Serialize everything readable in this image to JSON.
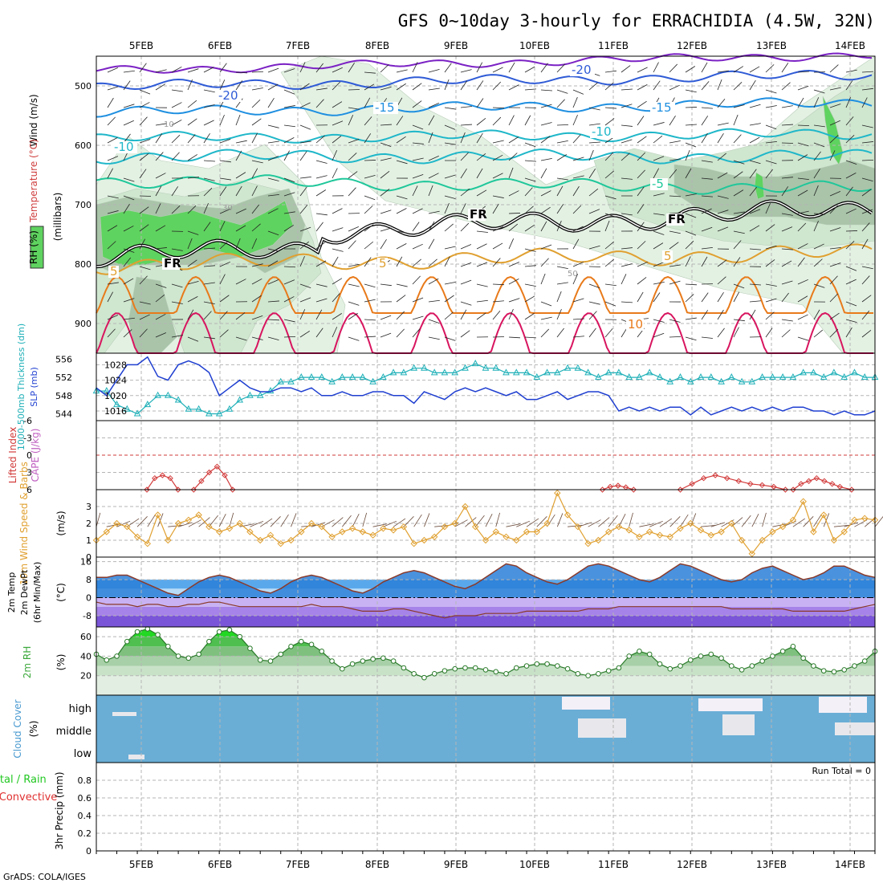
{
  "title": "GFS 0~10day 3-hourly for ERRACHIDIA (4.5W, 32N)",
  "footer": "GrADS: COLA/IGES",
  "run_total": "Run Total = 0",
  "colors": {
    "rh_light": "#e3f1e3",
    "rh_mid": "#cfe6cf",
    "rh_dark": "#a9c4a9",
    "rh_sat": "#5fd35f",
    "temp_cold": [
      "#7b22c4",
      "#2f5bd6",
      "#1f8fe0",
      "#1fb7c9",
      "#1fc79a"
    ],
    "temp_warm": [
      "#e0a030",
      "#e87a1a",
      "#d8155f"
    ],
    "slp": "#1f3fd0",
    "thickness": "#1fb0b8",
    "lifted": "#d23a3a",
    "wind10": "#e0a030",
    "temp_fill": "#2a7fd8",
    "dew_fill": "#9a6ae0",
    "rh2m": "#3ba83b",
    "cloud": "#6aaed6",
    "cloud_gap": "#e8e8ec"
  },
  "chart_data": [
    {
      "type": "contour",
      "name": "Upper-air cross section",
      "dates": [
        "5FEB",
        "6FEB",
        "7FEB",
        "8FEB",
        "9FEB",
        "10FEB",
        "11FEB",
        "12FEB",
        "13FEB",
        "14FEB"
      ],
      "ylabel": "(millibars)",
      "left_labels": {
        "wind": "Wind (m/s)",
        "temp": "Temperature (°C)",
        "rh": "RH (%)"
      },
      "ylim": [
        950,
        450
      ],
      "yticks": [
        500,
        600,
        700,
        800,
        900
      ],
      "contour_labels": [
        {
          "text": "-20",
          "color": "#2f5bd6"
        },
        {
          "text": "-20",
          "color": "#2f5bd6"
        },
        {
          "text": "-15",
          "color": "#1f8fe0"
        },
        {
          "text": "-15",
          "color": "#1f8fe0"
        },
        {
          "text": "-10",
          "color": "#1fb7c9"
        },
        {
          "text": "-10",
          "color": "#1fb7c9"
        },
        {
          "text": "-5",
          "color": "#1fc79a"
        },
        {
          "text": "5",
          "color": "#e0a030"
        },
        {
          "text": "5",
          "color": "#e0a030"
        },
        {
          "text": "5",
          "color": "#e0a030"
        },
        {
          "text": "10",
          "color": "#e87a1a"
        },
        {
          "text": "FR",
          "color": "#000000"
        },
        {
          "text": "FR",
          "color": "#000000"
        },
        {
          "text": "FR",
          "color": "#000000"
        },
        {
          "text": "10",
          "color": "#999999"
        },
        {
          "text": "30",
          "color": "#999999"
        },
        {
          "text": "50",
          "color": "#999999"
        }
      ]
    },
    {
      "type": "line",
      "name": "SLP and thickness",
      "ylabel_left": "1000-500mb Thickness (dm)",
      "ylabel_right": "SLP (mb)",
      "yticks_left": [
        544,
        548,
        552,
        556
      ],
      "yticks_right": [
        1016,
        1020,
        1024,
        1028
      ],
      "series": [
        {
          "name": "SLP",
          "values": [
            1022,
            1020,
            1024,
            1028,
            1028,
            1030,
            1025,
            1024,
            1028,
            1029,
            1028,
            1026,
            1020,
            1022,
            1024,
            1022,
            1021,
            1021,
            1022,
            1022,
            1021,
            1022,
            1020,
            1020,
            1021,
            1020,
            1020,
            1021,
            1021,
            1020,
            1020,
            1018,
            1021,
            1020,
            1019,
            1021,
            1022,
            1021,
            1022,
            1021,
            1020,
            1021,
            1019,
            1019,
            1020,
            1021,
            1019,
            1020,
            1021,
            1021,
            1020,
            1016,
            1017,
            1016,
            1017,
            1016,
            1017,
            1017,
            1015,
            1017,
            1015,
            1016,
            1017,
            1016,
            1017,
            1016,
            1017,
            1016,
            1017,
            1017,
            1016,
            1016,
            1015,
            1016,
            1015,
            1015,
            1016
          ]
        },
        {
          "name": "Thickness",
          "values": [
            549,
            549,
            546,
            545,
            544,
            546,
            548,
            548,
            547,
            545,
            545,
            544,
            544,
            545,
            547,
            548,
            548,
            549,
            551,
            551,
            552,
            552,
            552,
            551,
            552,
            552,
            552,
            551,
            552,
            553,
            553,
            554,
            554,
            553,
            553,
            553,
            554,
            555,
            554,
            554,
            553,
            553,
            553,
            552,
            553,
            553,
            554,
            554,
            553,
            552,
            553,
            553,
            552,
            552,
            553,
            552,
            551,
            552,
            551,
            552,
            552,
            551,
            552,
            551,
            551,
            552,
            552,
            552,
            552,
            553,
            553,
            552,
            553,
            552,
            553,
            552,
            552
          ]
        }
      ]
    },
    {
      "type": "line",
      "name": "Lifted index and CAPE",
      "ylabel_left": "Lifted Index",
      "ylabel_right": "CAPE (J/kg)",
      "yticks": [
        -6,
        -3,
        0,
        3,
        6
      ],
      "ylim": [
        -6,
        6
      ],
      "series": [
        {
          "name": "Lifted Index",
          "segments": [
            [
              [
                0.65,
                6
              ],
              [
                0.75,
                4
              ],
              [
                0.85,
                3.5
              ],
              [
                0.95,
                4
              ],
              [
                1.05,
                6
              ]
            ],
            [
              [
                1.25,
                6
              ],
              [
                1.35,
                4.5
              ],
              [
                1.45,
                3
              ],
              [
                1.55,
                2
              ],
              [
                1.65,
                3.5
              ],
              [
                1.75,
                6
              ]
            ],
            [
              [
                6.5,
                6
              ],
              [
                6.6,
                5.5
              ],
              [
                6.7,
                5.3
              ],
              [
                6.8,
                5.6
              ],
              [
                6.9,
                6
              ]
            ],
            [
              [
                7.5,
                6
              ],
              [
                7.65,
                5
              ],
              [
                7.8,
                4
              ],
              [
                7.95,
                3.5
              ],
              [
                8.1,
                4
              ],
              [
                8.25,
                4.5
              ],
              [
                8.4,
                5
              ],
              [
                8.55,
                5.2
              ],
              [
                8.7,
                5.5
              ],
              [
                8.85,
                6
              ]
            ],
            [
              [
                8.95,
                6
              ],
              [
                9.05,
                5
              ],
              [
                9.15,
                4.5
              ],
              [
                9.25,
                4
              ],
              [
                9.35,
                4.5
              ],
              [
                9.45,
                5
              ],
              [
                9.55,
                5.5
              ],
              [
                9.7,
                6
              ]
            ]
          ]
        }
      ]
    },
    {
      "type": "line",
      "name": "10m wind",
      "ylabel_left": "10m Wind Speed & Barbs",
      "ylabel_right": "(m/s)",
      "yticks": [
        0,
        1,
        2,
        3
      ],
      "ylim": [
        0,
        4
      ],
      "series": [
        {
          "name": "Wind speed",
          "values": [
            1.0,
            1.5,
            2.0,
            1.8,
            1.2,
            0.8,
            2.5,
            1.0,
            2.0,
            2.2,
            2.5,
            1.8,
            1.5,
            1.7,
            2.0,
            1.5,
            1.0,
            1.3,
            0.8,
            1.0,
            1.5,
            2.0,
            1.8,
            1.2,
            1.5,
            1.7,
            1.5,
            1.3,
            1.7,
            1.6,
            1.8,
            0.8,
            1.0,
            1.2,
            1.8,
            2.0,
            3.0,
            1.8,
            1.0,
            1.5,
            1.2,
            1.0,
            1.5,
            1.5,
            2.0,
            3.8,
            2.5,
            1.8,
            0.8,
            1.0,
            1.5,
            1.8,
            1.6,
            1.2,
            1.5,
            1.3,
            1.2,
            1.7,
            2.0,
            1.6,
            1.3,
            1.5,
            2.0,
            1.0,
            0.2,
            1.0,
            1.5,
            1.8,
            2.2,
            3.3,
            1.5,
            2.5,
            1.0,
            1.5,
            2.2,
            2.3,
            2.2
          ]
        }
      ]
    },
    {
      "type": "area",
      "name": "2m temperature and dewpoint",
      "ylabel_left": "2m Temp 2m DewPt (6hr Min/Max)",
      "ylabel_right": "(°C)",
      "yticks": [
        -8,
        0,
        8,
        16
      ],
      "ylim": [
        -13,
        18
      ],
      "series": [
        {
          "name": "Temperature",
          "values": [
            9,
            9,
            10,
            10,
            8,
            6,
            4,
            2,
            1,
            4,
            7,
            9,
            10,
            9,
            7,
            5,
            3,
            2,
            4,
            7,
            9,
            10,
            9,
            7,
            5,
            3,
            2,
            4,
            7,
            9,
            11,
            12,
            11,
            9,
            7,
            5,
            4,
            6,
            9,
            12,
            15,
            14,
            11,
            9,
            7,
            6,
            8,
            11,
            14,
            15,
            14,
            12,
            10,
            8,
            7,
            9,
            12,
            15,
            14,
            12,
            10,
            8,
            7,
            8,
            11,
            13,
            14,
            12,
            10,
            8,
            9,
            11,
            14,
            14,
            12,
            10,
            9
          ]
        },
        {
          "name": "Dewpoint",
          "values": [
            -2,
            -3,
            -3,
            -3,
            -4,
            -3,
            -3,
            -4,
            -4,
            -3,
            -3,
            -2,
            -2,
            -3,
            -4,
            -4,
            -4,
            -4,
            -4,
            -4,
            -4,
            -3,
            -4,
            -4,
            -4,
            -5,
            -6,
            -6,
            -6,
            -5,
            -5,
            -6,
            -7,
            -8,
            -9,
            -8,
            -8,
            -8,
            -7,
            -7,
            -7,
            -7,
            -6,
            -6,
            -6,
            -6,
            -6,
            -6,
            -5,
            -5,
            -5,
            -4,
            -4,
            -4,
            -4,
            -4,
            -4,
            -4,
            -4,
            -4,
            -4,
            -4,
            -5,
            -5,
            -5,
            -5,
            -5,
            -5,
            -6,
            -6,
            -6,
            -6,
            -6,
            -6,
            -5,
            -4,
            -3
          ]
        }
      ]
    },
    {
      "type": "area",
      "name": "2m relative humidity",
      "ylabel_left": "2m RH",
      "ylabel_right": "(%)",
      "yticks": [
        20,
        40,
        60
      ],
      "ylim": [
        0,
        70
      ],
      "series": [
        {
          "name": "RH",
          "values": [
            42,
            36,
            40,
            55,
            65,
            68,
            62,
            50,
            40,
            38,
            42,
            55,
            65,
            67,
            60,
            48,
            36,
            35,
            42,
            50,
            55,
            52,
            45,
            35,
            27,
            32,
            35,
            37,
            38,
            35,
            28,
            22,
            18,
            22,
            25,
            27,
            28,
            28,
            26,
            24,
            22,
            28,
            30,
            32,
            32,
            30,
            27,
            22,
            20,
            22,
            25,
            28,
            40,
            45,
            42,
            32,
            27,
            30,
            36,
            40,
            42,
            38,
            30,
            26,
            30,
            35,
            40,
            45,
            50,
            38,
            30,
            25,
            24,
            26,
            30,
            35,
            45
          ]
        }
      ]
    },
    {
      "type": "heatmap",
      "name": "Cloud cover",
      "ylabel_left": "Cloud Cover",
      "ylabel_right": "(%)",
      "levels": [
        "high",
        "middle",
        "low"
      ]
    },
    {
      "type": "bar",
      "name": "3hr precipitation",
      "ylabel_left": "Total / Rain Convective",
      "ylabel_right": "3hr Precip (mm)",
      "yticks": [
        0,
        0.2,
        0.4,
        0.6,
        0.8
      ],
      "ylim": [
        0,
        1.0
      ],
      "values": []
    }
  ]
}
